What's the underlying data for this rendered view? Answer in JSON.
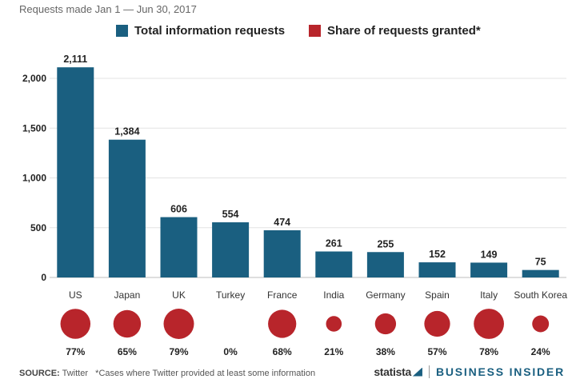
{
  "subtitle": "Requests made Jan 1 — Jun 30, 2017",
  "legend": {
    "requests_label": "Total information requests",
    "share_label": "Share of requests granted*"
  },
  "colors": {
    "bar": "#1a5f80",
    "circle": "#b8252b"
  },
  "footer": {
    "source_prefix": "SOURCE:",
    "source_text": "Twitter",
    "note": "*Cases where Twitter provided at least some information"
  },
  "branding": {
    "statista": "statista",
    "business_insider": "BUSINESS INSIDER"
  },
  "chart_data": {
    "type": "bar",
    "categories": [
      "US",
      "Japan",
      "UK",
      "Turkey",
      "France",
      "India",
      "Germany",
      "Spain",
      "Italy",
      "South Korea"
    ],
    "series": [
      {
        "name": "Total information requests",
        "values": [
          2111,
          1384,
          606,
          554,
          474,
          261,
          255,
          152,
          149,
          75
        ]
      },
      {
        "name": "Share of requests granted*",
        "values": [
          77,
          65,
          79,
          0,
          68,
          21,
          38,
          57,
          78,
          24
        ],
        "unit": "%"
      }
    ],
    "value_labels": [
      "2,111",
      "1,384",
      "606",
      "554",
      "474",
      "261",
      "255",
      "152",
      "149",
      "75"
    ],
    "share_labels": [
      "77%",
      "65%",
      "79%",
      "0%",
      "68%",
      "21%",
      "38%",
      "57%",
      "78%",
      "24%"
    ],
    "yticks": [
      0,
      500,
      1000,
      1500,
      2000
    ],
    "ytick_labels": [
      "0",
      "500",
      "1,000",
      "1,500",
      "2,000"
    ],
    "ylim": [
      0,
      2200
    ],
    "grid": true,
    "legend_position": "top"
  }
}
